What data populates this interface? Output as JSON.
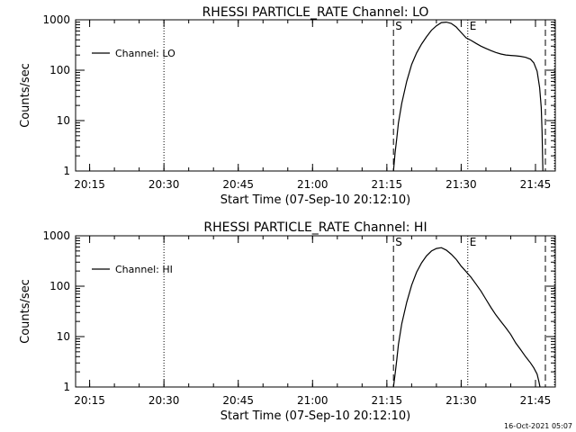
{
  "footer": {
    "timestamp": "16-Oct-2021 05:07"
  },
  "chart_data": [
    {
      "type": "line",
      "title": "RHESSI PARTICLE_RATE Channel: LO",
      "xlabel": "Start Time (07-Sep-10 20:12:10)",
      "ylabel": "Counts/sec",
      "y_scale": "log",
      "xlim": [
        "20:12:10",
        "21:49:00"
      ],
      "ylim": [
        1,
        1000
      ],
      "x_ticks": [
        "20:15",
        "20:30",
        "20:45",
        "21:00",
        "21:15",
        "21:30",
        "21:45"
      ],
      "y_ticks": [
        "1",
        "10",
        "100",
        "1000"
      ],
      "legend": {
        "entry": "Channel: LO",
        "position": "top-left"
      },
      "markers": [
        {
          "label": "",
          "style": "dotted",
          "x": "20:30:00"
        },
        {
          "label": "S",
          "style": "dashed",
          "x": "21:16:20"
        },
        {
          "label": "E",
          "style": "dotted",
          "x": "21:31:20"
        },
        {
          "label": "",
          "style": "dashed",
          "x": "21:47:00"
        },
        {
          "label": "",
          "style": "dotted",
          "x": "21:48:50"
        }
      ],
      "series": [
        {
          "name": "Channel: LO",
          "x": [
            "21:16:20",
            "21:16:40",
            "21:17:00",
            "21:17:20",
            "21:18:00",
            "21:19:00",
            "21:20:00",
            "21:21:00",
            "21:22:00",
            "21:23:00",
            "21:24:00",
            "21:25:00",
            "21:26:00",
            "21:27:00",
            "21:28:00",
            "21:29:00",
            "21:30:00",
            "21:31:00",
            "21:32:00",
            "21:33:00",
            "21:34:00",
            "21:35:00",
            "21:36:00",
            "21:37:00",
            "21:38:00",
            "21:39:00",
            "21:40:00",
            "21:41:00",
            "21:42:00",
            "21:43:00",
            "21:44:00",
            "21:44:40",
            "21:45:20",
            "21:45:50",
            "21:46:10",
            "21:46:20",
            "21:46:30"
          ],
          "y": [
            1.0,
            2.3,
            4.5,
            9,
            22,
            60,
            130,
            220,
            330,
            460,
            620,
            760,
            880,
            900,
            850,
            720,
            560,
            440,
            390,
            340,
            300,
            270,
            245,
            225,
            210,
            200,
            196,
            193,
            188,
            180,
            165,
            140,
            95,
            45,
            18,
            6,
            1.0
          ]
        }
      ]
    },
    {
      "type": "line",
      "title": "RHESSI PARTICLE_RATE Channel: HI",
      "xlabel": "Start Time (07-Sep-10 20:12:10)",
      "ylabel": "Counts/sec",
      "y_scale": "log",
      "xlim": [
        "20:12:10",
        "21:49:00"
      ],
      "ylim": [
        1,
        1000
      ],
      "x_ticks": [
        "20:15",
        "20:30",
        "20:45",
        "21:00",
        "21:15",
        "21:30",
        "21:45"
      ],
      "y_ticks": [
        "1",
        "10",
        "100",
        "1000"
      ],
      "legend": {
        "entry": "Channel: HI",
        "position": "top-left"
      },
      "markers": [
        {
          "label": "",
          "style": "dotted",
          "x": "20:30:00"
        },
        {
          "label": "S",
          "style": "dashed",
          "x": "21:16:20"
        },
        {
          "label": "E",
          "style": "dotted",
          "x": "21:31:20"
        },
        {
          "label": "",
          "style": "dashed",
          "x": "21:47:00"
        },
        {
          "label": "",
          "style": "dotted",
          "x": "21:48:50"
        }
      ],
      "series": [
        {
          "name": "Channel: HI",
          "x": [
            "21:16:20",
            "21:16:40",
            "21:17:00",
            "21:17:20",
            "21:18:00",
            "21:19:00",
            "21:20:00",
            "21:21:00",
            "21:22:00",
            "21:23:00",
            "21:24:00",
            "21:25:00",
            "21:26:00",
            "21:27:00",
            "21:28:00",
            "21:29:00",
            "21:30:00",
            "21:31:00",
            "21:32:00",
            "21:33:00",
            "21:34:00",
            "21:35:00",
            "21:36:00",
            "21:37:00",
            "21:38:00",
            "21:39:00",
            "21:40:00",
            "21:41:00",
            "21:42:00",
            "21:43:00",
            "21:44:00",
            "21:44:40",
            "21:45:20",
            "21:45:40",
            "21:45:55"
          ],
          "y": [
            1.0,
            1.8,
            3.5,
            7,
            18,
            48,
            105,
            190,
            290,
            400,
            500,
            560,
            580,
            520,
            430,
            340,
            250,
            195,
            150,
            110,
            80,
            55,
            38,
            27,
            20,
            15,
            11,
            7.5,
            5.5,
            4.0,
            3.0,
            2.4,
            1.8,
            1.3,
            1.0
          ]
        }
      ]
    }
  ]
}
